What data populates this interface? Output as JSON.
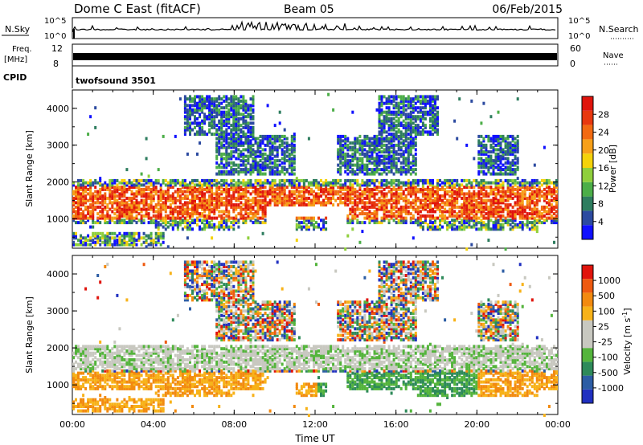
{
  "header": {
    "station": "Dome C East (fitACF)",
    "beam": "Beam 05",
    "date": "06/Feb/2015"
  },
  "summary_panels": {
    "nsky_label": "N.Sky",
    "nsearch_label": "N.Search",
    "freq_label": "Freq.",
    "freq_unit": "[MHz]",
    "nave_label": "Nave",
    "cpid_label": "CPID",
    "cpid_value": "twofsound 3501",
    "noise_left_ticks": [
      "10^5",
      "10^0"
    ],
    "noise_right_ticks": [
      "10^5",
      "10^0"
    ],
    "freq_left_ticks": [
      "12",
      "8"
    ],
    "nave_right_ticks": [
      "60",
      "0"
    ]
  },
  "chart_data": [
    {
      "type": "heatmap",
      "name": "power",
      "ylabel": "Slant Range [km]",
      "xlabel": "",
      "x_range_hours": [
        0,
        24
      ],
      "ylim": [
        200,
        4500
      ],
      "yticks": [
        "1000",
        "2000",
        "3000",
        "4000"
      ],
      "colorbar": {
        "label": "Power [dB]",
        "ticks": [
          "4",
          "8",
          "12",
          "16",
          "20",
          "24",
          "28"
        ],
        "colors": [
          "#1010ff",
          "#2c4aa0",
          "#2e7d5f",
          "#4cae48",
          "#8fcf3c",
          "#f4d20a",
          "#f7a019",
          "#f26a12",
          "#e8380f",
          "#e0140c"
        ]
      }
    },
    {
      "type": "heatmap",
      "name": "velocity",
      "ylabel": "Slant Range [km]",
      "xlabel": "Time UT",
      "x_range_hours": [
        0,
        24
      ],
      "ylim": [
        200,
        4500
      ],
      "yticks": [
        "1000",
        "2000",
        "3000",
        "4000"
      ],
      "xticks": [
        "00:00",
        "04:00",
        "08:00",
        "12:00",
        "16:00",
        "20:00",
        "00:00"
      ],
      "colorbar": {
        "label": "Velocity [m s",
        "label_sup": "-1",
        "label_end": "]",
        "ticks": [
          "1000",
          "500",
          "100",
          "25",
          "-25",
          "-100",
          "-500",
          "-1000"
        ],
        "colors": [
          "#2030c0",
          "#2c5da4",
          "#2e8a5a",
          "#54b43c",
          "#c8c8c0",
          "#c8c8c0",
          "#f7b219",
          "#f28a10",
          "#ee5a10",
          "#e0140c"
        ]
      }
    }
  ]
}
